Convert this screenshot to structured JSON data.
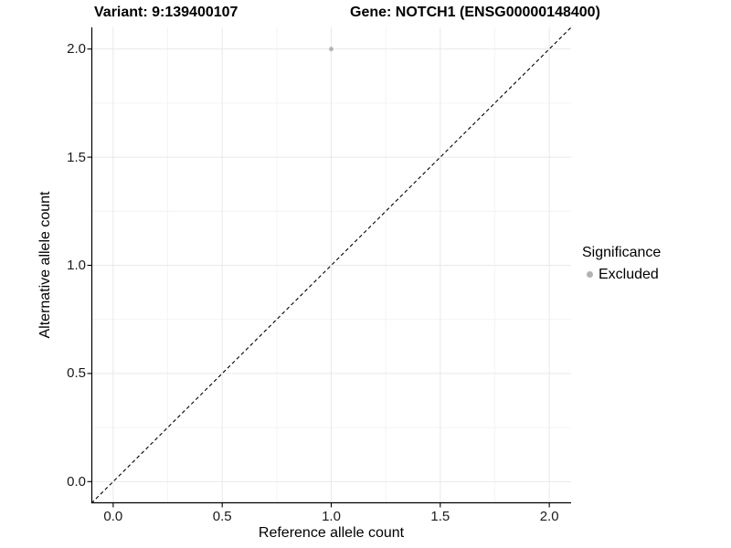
{
  "chart_data": {
    "type": "scatter",
    "title_segments": [
      "Variant: 9:139400107",
      "Gene: NOTCH1 (ENSG00000148400)"
    ],
    "xlabel": "Reference allele count",
    "ylabel": "Alternative allele count",
    "xlim": [
      -0.1,
      2.1
    ],
    "ylim": [
      -0.1,
      2.1
    ],
    "x_ticks": [
      0.0,
      0.5,
      1.0,
      1.5,
      2.0
    ],
    "y_ticks": [
      0.0,
      0.5,
      1.0,
      1.5,
      2.0
    ],
    "x_tick_labels": [
      "0.0",
      "0.5",
      "1.0",
      "1.5",
      "2.0"
    ],
    "y_tick_labels": [
      "0.0",
      "0.5",
      "1.0",
      "1.5",
      "2.0"
    ],
    "x_minor_ticks": [
      0.25,
      0.75,
      1.25,
      1.75
    ],
    "y_minor_ticks": [
      0.25,
      0.75,
      1.25,
      1.75
    ],
    "grid": true,
    "series": [
      {
        "name": "Excluded",
        "marker": "circle",
        "color": "#b2b2b2",
        "points": [
          {
            "x": 1.0,
            "y": 2.0
          }
        ]
      }
    ],
    "reference_line": {
      "kind": "identity",
      "style": "dashed",
      "color": "#000000"
    },
    "legend": {
      "title": "Significance",
      "position": "right",
      "items": [
        {
          "label": "Excluded",
          "marker": "circle",
          "color": "#b2b2b2"
        }
      ]
    },
    "colors": {
      "background": "#ffffff",
      "grid_major": "#e9e9e9",
      "grid_minor": "#f4f4f4",
      "axis_line": "#000000",
      "tick_mark": "#000000",
      "point": "#b2b2b2"
    }
  }
}
